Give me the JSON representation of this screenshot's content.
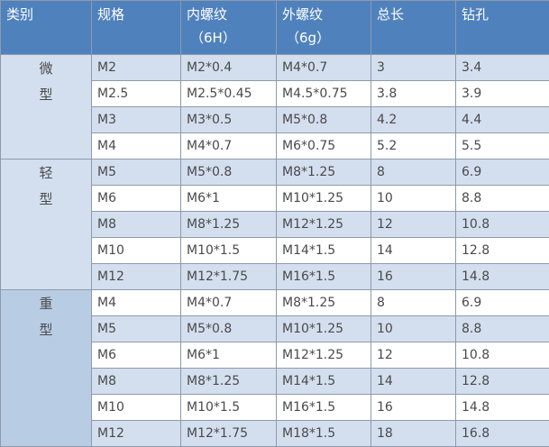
{
  "header": {
    "category": "类别",
    "spec": "规格",
    "internal_thread": "内螺纹",
    "internal_thread_grade": "（6H）",
    "external_thread": "外螺纹",
    "external_thread_grade": "（6g）",
    "total_length": "总长",
    "drill_hole": "钻孔"
  },
  "colors": {
    "header": "#4f81bd",
    "band": "#d3dfee",
    "heavy_group": "#b8cce4"
  },
  "groups": [
    {
      "label": "微型",
      "rows": [
        [
          "M2",
          "M2*0.4",
          "M4*0.7",
          "3",
          "3.4"
        ],
        [
          "M2.5",
          "M2.5*0.45",
          "M4.5*0.75",
          "3.8",
          "3.9"
        ],
        [
          "M3",
          "M3*0.5",
          "M5*0.8",
          "4.2",
          "4.4"
        ],
        [
          "M4",
          "M4*0.7",
          "M6*0.75",
          "5.2",
          "5.5"
        ]
      ]
    },
    {
      "label": "轻型",
      "rows": [
        [
          "M5",
          "M5*0.8",
          "M8*1.25",
          "8",
          "6.9"
        ],
        [
          "M6",
          "M6*1",
          "M10*1.25",
          "10",
          "8.8"
        ],
        [
          "M8",
          "M8*1.25",
          "M12*1.25",
          "12",
          "10.8"
        ],
        [
          "M10",
          "M10*1.5",
          "M14*1.5",
          "14",
          "12.8"
        ],
        [
          "M12",
          "M12*1.75",
          "M16*1.5",
          "16",
          "14.8"
        ]
      ]
    },
    {
      "label": "重型",
      "rows": [
        [
          "M4",
          "M4*0.7",
          "M8*1.25",
          "8",
          "6.9"
        ],
        [
          "M5",
          "M5*0.8",
          "M10*1.25",
          "10",
          "8.8"
        ],
        [
          "M6",
          "M6*1",
          "M12*1.25",
          "12",
          "10.8"
        ],
        [
          "M8",
          "M8*1.25",
          "M14*1.5",
          "14",
          "12.8"
        ],
        [
          "M10",
          "M10*1.5",
          "M16*1.5",
          "16",
          "14.8"
        ],
        [
          "M12",
          "M12*1.75",
          "M18*1.5",
          "18",
          "16.8"
        ]
      ]
    }
  ]
}
